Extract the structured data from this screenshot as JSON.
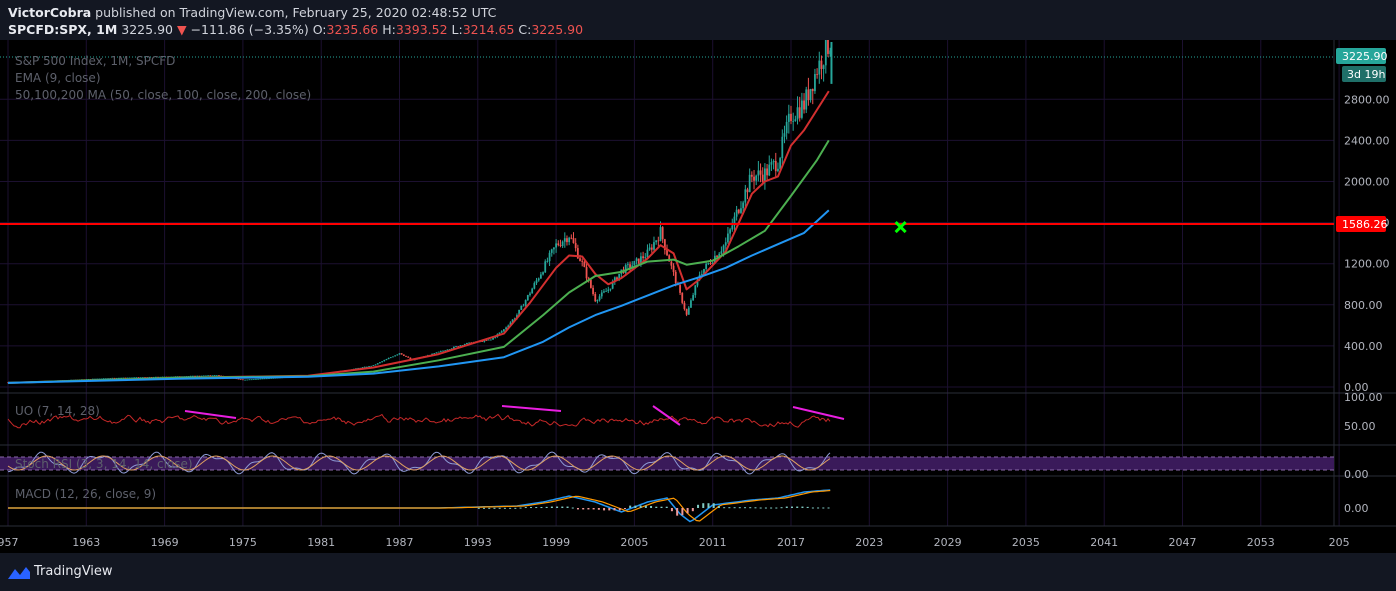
{
  "header": {
    "author": "VictorCobra",
    "published_text": "published on TradingView.com, February 25, 2020 02:48:52 UTC",
    "symbol": "SPCFD:SPX, 1M",
    "last": "3225.90",
    "change": "−111.86 (−3.35%)",
    "o_label": "O:",
    "o_value": "3235.66",
    "h_label": "H:",
    "h_value": "3393.52",
    "l_label": "L:",
    "l_value": "3214.65",
    "c_label": "C:",
    "c_value": "3225.90"
  },
  "legend": {
    "main": "S&P 500 Index, 1M, SPCFD",
    "ema": "EMA (9, close)",
    "ma": "50,100,200 MA (50, close, 100, close, 200, close)",
    "uo": "UO (7, 14, 28)",
    "stoch": "Stoch RSI (3, 3, 14, 14, close)",
    "macd": "MACD (12, 26, close, 9)"
  },
  "price_badge": "3225.90",
  "countdown_badge": "3d 19h",
  "level_badge": "1586.26",
  "footer": {
    "brand": "TradingView"
  },
  "colors": {
    "background": "#000000",
    "grid": "#1c1030",
    "up": "#26a69a",
    "down": "#ef5350",
    "ema9": "#d32f2f",
    "ma50": "#4caf50",
    "ma100": "#2196f3",
    "level": "#ff0000",
    "divergence": "#e91ee0",
    "cross": "#00ff00",
    "stoch_band": "#3a1a5a",
    "badge": "#26a69a"
  },
  "chart_data": {
    "type": "line",
    "title": "S&P 500 Index, 1M, SPCFD",
    "x_axis": {
      "ticks": [
        "957",
        "1963",
        "1969",
        "1975",
        "1981",
        "1987",
        "1993",
        "1999",
        "2005",
        "2011",
        "2017",
        "2023",
        "2029",
        "2035",
        "2041",
        "2047",
        "2053",
        "205"
      ],
      "range": [
        1957,
        2060
      ]
    },
    "y_axis": {
      "ticks": [
        "0.00",
        "400.00",
        "800.00",
        "1200.00",
        "1600.00",
        "2000.00",
        "2400.00",
        "2800.00"
      ],
      "ylim": [
        -40,
        3350
      ]
    },
    "series": [
      {
        "name": "S&P 500 Index",
        "kind": "price",
        "x": [
          1957,
          1961,
          1965,
          1969,
          1973,
          1975,
          1980,
          1983,
          1985,
          1987,
          1988,
          1990,
          1992,
          1994,
          1995,
          1996,
          1997,
          1998,
          1999,
          2000,
          2001,
          2002,
          2003,
          2004,
          2005,
          2006,
          2007,
          2008,
          2009,
          2010,
          2011,
          2012,
          2013,
          2014,
          2015,
          2016,
          2017,
          2018,
          2019,
          2020.1
        ],
        "y": [
          45,
          65,
          88,
          100,
          115,
          70,
          110,
          165,
          210,
          330,
          260,
          340,
          420,
          460,
          560,
          700,
          920,
          1150,
          1380,
          1480,
          1200,
          850,
          950,
          1130,
          1200,
          1300,
          1510,
          1100,
          700,
          1100,
          1250,
          1400,
          1750,
          2050,
          2080,
          2200,
          2650,
          2750,
          3100,
          3390
        ]
      },
      {
        "name": "EMA (9, close)",
        "kind": "line",
        "x": [
          1957,
          1970,
          1980,
          1985,
          1990,
          1995,
          1997,
          1999,
          2000,
          2001,
          2002,
          2003,
          2004,
          2006,
          2007,
          2008,
          2009,
          2010,
          2012,
          2014,
          2015,
          2016,
          2017,
          2018,
          2019,
          2019.9
        ],
        "y": [
          40,
          90,
          110,
          190,
          320,
          520,
          820,
          1160,
          1280,
          1270,
          1100,
          1000,
          1060,
          1250,
          1380,
          1300,
          950,
          1050,
          1320,
          1880,
          2000,
          2050,
          2350,
          2500,
          2700,
          2880
        ]
      },
      {
        "name": "MA 50",
        "kind": "line",
        "x": [
          1957,
          1970,
          1980,
          1985,
          1990,
          1995,
          1998,
          2000,
          2002,
          2004,
          2006,
          2008,
          2009,
          2011,
          2013,
          2015,
          2017,
          2019,
          2019.9
        ],
        "y": [
          40,
          90,
          105,
          150,
          260,
          390,
          700,
          920,
          1080,
          1120,
          1220,
          1240,
          1190,
          1230,
          1370,
          1520,
          1860,
          2210,
          2400
        ]
      },
      {
        "name": "MA 100",
        "kind": "line",
        "x": [
          1957,
          1970,
          1980,
          1985,
          1990,
          1995,
          1998,
          2000,
          2002,
          2004,
          2006,
          2008,
          2010,
          2012,
          2014,
          2016,
          2018,
          2019.9
        ],
        "y": [
          40,
          80,
          100,
          130,
          200,
          290,
          440,
          580,
          700,
          790,
          890,
          990,
          1070,
          1160,
          1280,
          1390,
          1500,
          1720
        ]
      }
    ],
    "level": {
      "label": "1586.26",
      "y": 1586.26
    },
    "target_marker": {
      "x": 2025.4,
      "y": 1586.26
    },
    "indicators": {
      "uo": {
        "ticks": [
          "100.00",
          "50.00"
        ],
        "range": [
          30,
          100
        ]
      },
      "stoch": {
        "ticks": [
          "0.00"
        ]
      },
      "macd": {
        "ticks": [
          "0.00"
        ]
      }
    }
  }
}
